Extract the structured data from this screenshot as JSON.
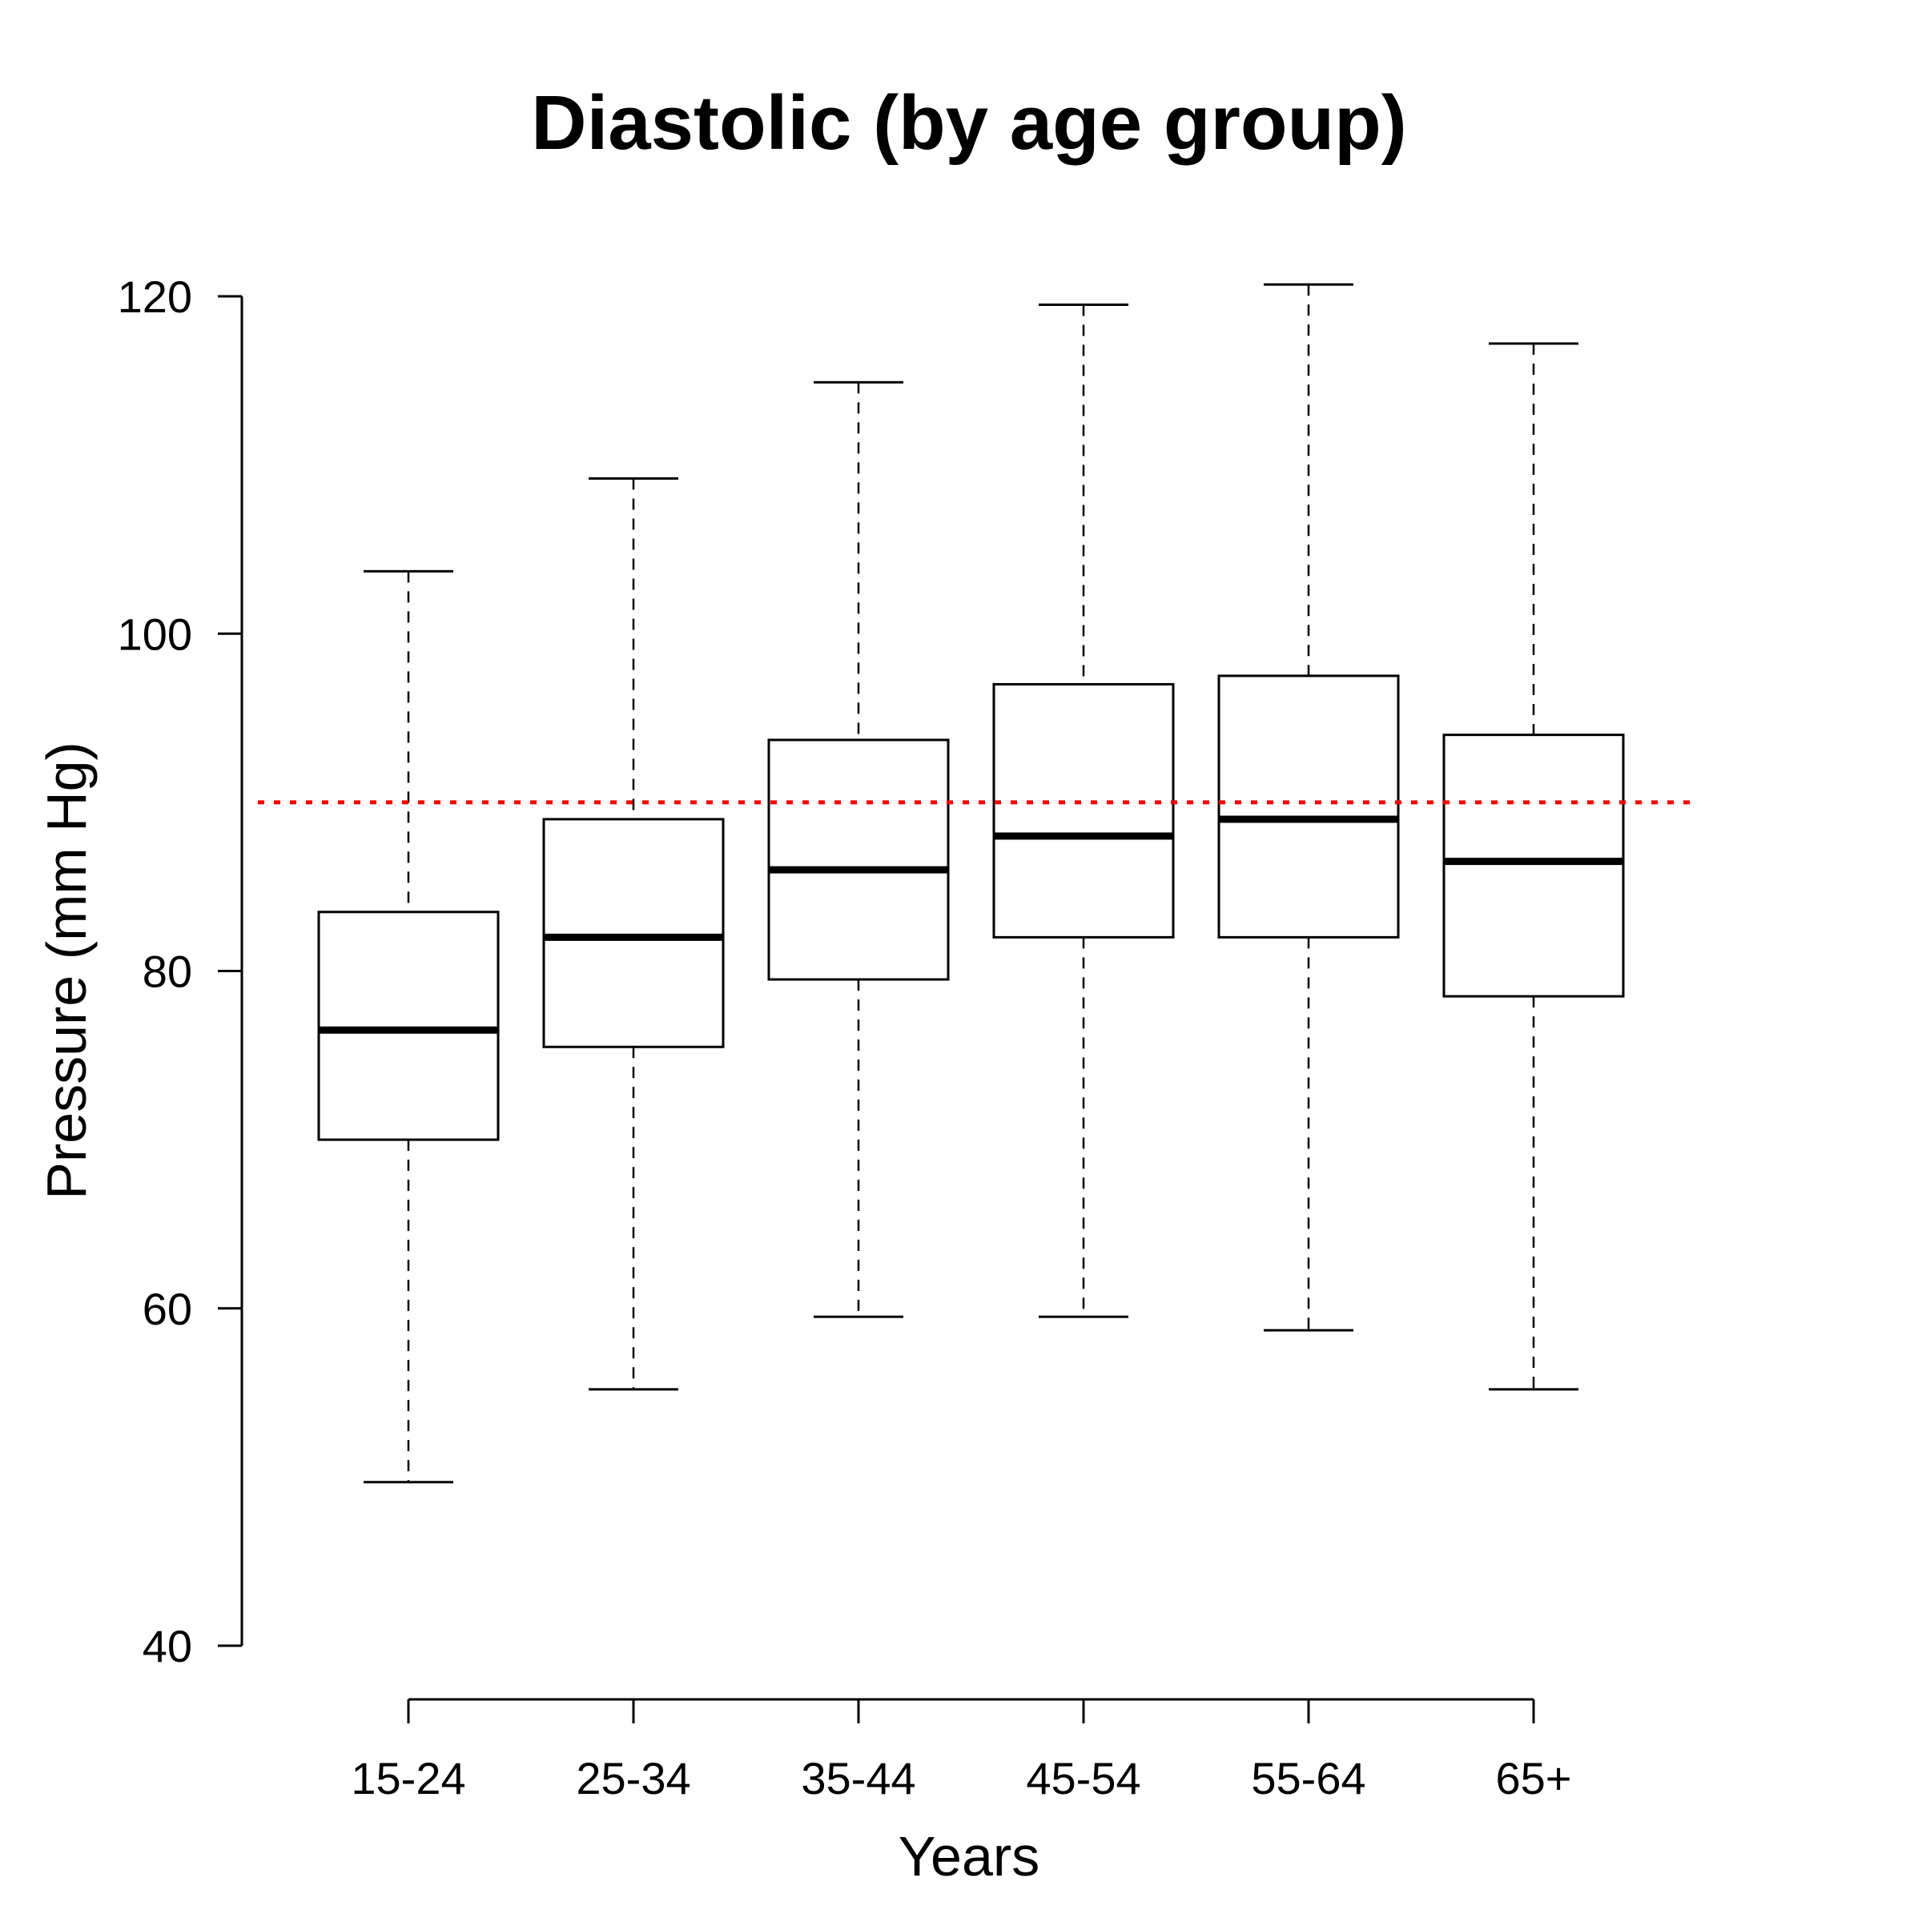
{
  "chart_data": {
    "type": "box",
    "title": "Diastolic (by age group)",
    "xlabel": "Years",
    "ylabel": "Pressure (mm Hg)",
    "ylim": [
      40,
      120
    ],
    "yticks": [
      40,
      60,
      80,
      100,
      120
    ],
    "categories": [
      "15-24",
      "25-34",
      "35-44",
      "45-54",
      "55-64",
      "65+"
    ],
    "boxes": [
      {
        "category": "15-24",
        "min": 49.7,
        "q1": 70.0,
        "median": 76.5,
        "q3": 83.5,
        "max": 103.7
      },
      {
        "category": "25-34",
        "min": 55.2,
        "q1": 75.5,
        "median": 82.0,
        "q3": 89.0,
        "max": 109.2
      },
      {
        "category": "35-44",
        "min": 59.5,
        "q1": 79.5,
        "median": 86.0,
        "q3": 93.7,
        "max": 114.9
      },
      {
        "category": "45-54",
        "min": 59.5,
        "q1": 82.0,
        "median": 88.0,
        "q3": 97.0,
        "max": 119.5
      },
      {
        "category": "55-64",
        "min": 58.7,
        "q1": 82.0,
        "median": 89.0,
        "q3": 97.5,
        "max": 120.7
      },
      {
        "category": "65+",
        "min": 55.2,
        "q1": 78.5,
        "median": 86.5,
        "q3": 94.0,
        "max": 117.2
      }
    ],
    "reference_line": {
      "y": 90,
      "color": "#ff0000",
      "style": "dotted"
    },
    "grid": false,
    "colors": {
      "box_stroke": "#000000",
      "box_fill": "#ffffff",
      "reference": "#ff0000"
    }
  }
}
